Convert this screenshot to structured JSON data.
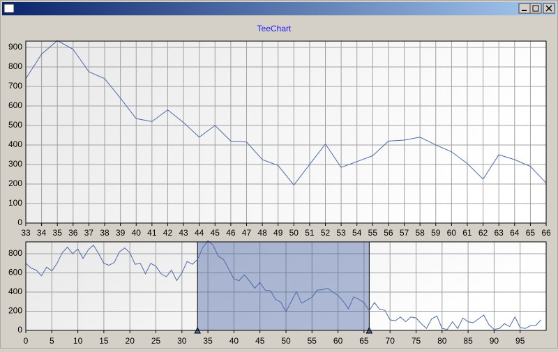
{
  "chart_data": [
    {
      "type": "line",
      "title": "TeeChart",
      "color": "#4a6aa8",
      "grid": true,
      "x": [
        33,
        34,
        35,
        36,
        37,
        38,
        39,
        40,
        41,
        42,
        43,
        44,
        45,
        46,
        47,
        48,
        49,
        50,
        51,
        52,
        53,
        54,
        55,
        56,
        57,
        58,
        59,
        60,
        61,
        62,
        63,
        64,
        65,
        66
      ],
      "values": [
        740,
        865,
        935,
        890,
        775,
        740,
        640,
        535,
        520,
        580,
        515,
        440,
        500,
        420,
        415,
        325,
        295,
        195,
        300,
        405,
        285,
        315,
        345,
        420,
        425,
        440,
        400,
        365,
        305,
        225,
        350,
        325,
        290,
        205
      ],
      "xlim": [
        33,
        66
      ],
      "xticks": [
        33,
        34,
        35,
        36,
        37,
        38,
        39,
        40,
        41,
        42,
        43,
        44,
        45,
        46,
        47,
        48,
        49,
        50,
        51,
        52,
        53,
        54,
        55,
        56,
        57,
        58,
        59,
        60,
        61,
        62,
        63,
        64,
        65,
        66
      ],
      "ylim": [
        0,
        932
      ],
      "yticks": [
        0,
        100,
        200,
        300,
        400,
        500,
        600,
        700,
        800,
        900
      ]
    },
    {
      "type": "line",
      "color": "#4a6aa8",
      "grid": true,
      "selection": [
        33,
        66
      ],
      "x": [
        0,
        1,
        2,
        3,
        4,
        5,
        6,
        7,
        8,
        9,
        10,
        11,
        12,
        13,
        14,
        15,
        16,
        17,
        18,
        19,
        20,
        21,
        22,
        23,
        24,
        25,
        26,
        27,
        28,
        29,
        30,
        31,
        32,
        33,
        34,
        35,
        36,
        37,
        38,
        39,
        40,
        41,
        42,
        43,
        44,
        45,
        46,
        47,
        48,
        49,
        50,
        51,
        52,
        53,
        54,
        55,
        56,
        57,
        58,
        59,
        60,
        61,
        62,
        63,
        64,
        65,
        66,
        67,
        68,
        69,
        70,
        71,
        72,
        73,
        74,
        75,
        76,
        77,
        78,
        79,
        80,
        81,
        82,
        83,
        84,
        85,
        86,
        87,
        88,
        89,
        90,
        91,
        92,
        93,
        94,
        95,
        96,
        97,
        98,
        99
      ],
      "values": [
        700,
        650,
        630,
        570,
        660,
        620,
        700,
        810,
        870,
        800,
        850,
        750,
        840,
        890,
        800,
        700,
        680,
        710,
        820,
        860,
        810,
        690,
        700,
        590,
        700,
        670,
        590,
        560,
        630,
        520,
        600,
        720,
        690,
        740,
        865,
        935,
        890,
        775,
        740,
        640,
        535,
        520,
        580,
        515,
        440,
        500,
        420,
        415,
        325,
        295,
        195,
        300,
        405,
        285,
        315,
        345,
        420,
        425,
        440,
        400,
        365,
        305,
        225,
        350,
        325,
        290,
        205,
        290,
        220,
        210,
        110,
        100,
        140,
        90,
        140,
        130,
        70,
        20,
        120,
        150,
        20,
        10,
        90,
        20,
        130,
        90,
        80,
        120,
        160,
        60,
        10,
        20,
        70,
        40,
        140,
        30,
        20,
        50,
        50,
        110
      ],
      "xlim": [
        0,
        100
      ],
      "xticks": [
        0,
        5,
        10,
        15,
        20,
        25,
        30,
        35,
        40,
        45,
        50,
        55,
        60,
        65,
        70,
        75,
        80,
        85,
        90,
        95
      ],
      "ylim": [
        0,
        924
      ],
      "yticks": [
        0,
        200,
        400,
        600,
        800
      ]
    }
  ]
}
